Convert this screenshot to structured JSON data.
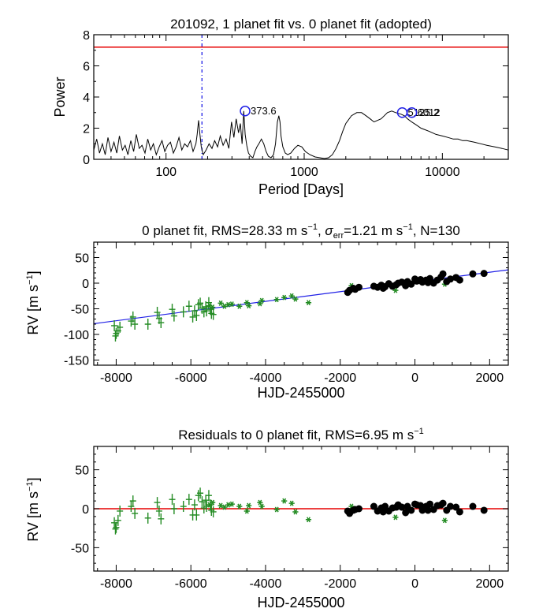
{
  "colors": {
    "rv_dot": "#000000",
    "rv_plus": "#228b22",
    "rv_star": "#228b22",
    "fit_line": "#1f1fe6",
    "zero_line": "#e60000",
    "threshold": "#e60000",
    "window": "#1f1fe6",
    "peak_circle": "#1f1fe6"
  },
  "chart_data": [
    {
      "type": "line",
      "title": "201092,  1 planet fit vs. 0 planet fit (adopted)",
      "xlabel": "Period [Days]",
      "ylabel": "Power",
      "xscale": "log",
      "xlim": [
        30,
        30000
      ],
      "ylim": [
        0,
        8
      ],
      "xtick_labels": [
        "100",
        "1000",
        "10000"
      ],
      "ytick_labels": [
        "0",
        "2",
        "4",
        "6",
        "8"
      ],
      "threshold_power": 7.2,
      "window_period": 182,
      "peaks": [
        {
          "period": 373.6,
          "power": 3.1,
          "label": "373.6"
        },
        {
          "period": 5125.2,
          "power": 3.0,
          "label": "5125.2"
        },
        {
          "period": 6012,
          "power": 3.0,
          "label": "6012"
        }
      ],
      "series": [
        {
          "periods": [
            30,
            31.5,
            33,
            34.6,
            36.3,
            38,
            40,
            42,
            44,
            46,
            48.3,
            50.6,
            53,
            55.6,
            58.3,
            61,
            64,
            67,
            70.4,
            73.8,
            77.4,
            81,
            85,
            89.2,
            93.5,
            98,
            102.7,
            107.7,
            113,
            118.4,
            124,
            130,
            136.4,
            143,
            150,
            157,
            164.6,
            168,
            172,
            176,
            180,
            186,
            195,
            205,
            215,
            225,
            236,
            247,
            259,
            272,
            285,
            298,
            310,
            322,
            335,
            345,
            355,
            365,
            374,
            384,
            395,
            410,
            425,
            440,
            455,
            470,
            490,
            510,
            530,
            550,
            575,
            600,
            620,
            640,
            655,
            668,
            680,
            700,
            730,
            760,
            800,
            850,
            900,
            960,
            1020,
            1100,
            1200,
            1300,
            1400,
            1500,
            1600,
            1700,
            1800,
            1900,
            2000,
            2200,
            2400,
            2600,
            2800,
            3000,
            3200,
            3400,
            3600,
            3800,
            4000,
            4300,
            4600,
            5000,
            5300,
            5600,
            6000,
            6500,
            7000,
            7500,
            8000,
            9000,
            10000,
            11000,
            12000,
            13000,
            14000,
            15000,
            17000,
            19000,
            21000,
            24000,
            27000,
            30000
          ],
          "power": [
            0.6,
            1.3,
            0.4,
            1.0,
            0.3,
            1.4,
            0.5,
            1.1,
            0.4,
            1.5,
            0.6,
            0.9,
            0.3,
            1.2,
            0.5,
            1.6,
            0.7,
            0.9,
            0.4,
            1.3,
            0.6,
            1.0,
            0.3,
            0.8,
            1.2,
            0.5,
            0.9,
            1.1,
            0.4,
            0.8,
            1.4,
            0.6,
            1.0,
            0.8,
            1.2,
            0.5,
            1.0,
            1.6,
            2.5,
            1.6,
            0.8,
            0.3,
            0.6,
            1.0,
            0.7,
            1.2,
            0.8,
            1.5,
            0.9,
            1.3,
            0.7,
            2.4,
            1.4,
            2.6,
            1.7,
            2.3,
            1.0,
            3.1,
            1.6,
            0.9,
            0.4,
            0.2,
            0.1,
            0.5,
            0.8,
            1.0,
            1.3,
            1.0,
            0.5,
            0.2,
            0.1,
            0.3,
            1.0,
            2.4,
            2.8,
            2.4,
            1.5,
            0.8,
            0.4,
            0.3,
            0.4,
            0.7,
            0.9,
            0.8,
            0.5,
            0.3,
            0.15,
            0.1,
            0.05,
            0.1,
            0.3,
            0.7,
            1.2,
            1.8,
            2.3,
            2.8,
            3.0,
            3.0,
            2.8,
            2.6,
            2.4,
            2.5,
            2.6,
            2.8,
            3.0,
            3.1,
            3.0,
            2.9,
            2.8,
            2.6,
            2.4,
            2.2,
            2.0,
            1.9,
            1.8,
            1.6,
            1.5,
            1.4,
            1.3,
            1.3,
            1.2,
            1.2,
            1.1,
            1.0,
            0.9,
            0.8,
            0.7,
            0.6
          ]
        }
      ]
    },
    {
      "type": "scatter",
      "title": "0 planet fit, RMS=28.33 m s⁻¹, σerr=1.21 m s⁻¹, N=130",
      "title_parts": {
        "prefix": "0 planet fit, RMS=28.33 m s",
        "sup1": "−1",
        "mid1": ", ",
        "sigma": "σ",
        "sigma_sub": "err",
        "mid2": "=1.21 m s",
        "sup2": "−1",
        "suffix": ", N=130"
      },
      "xlabel": "HJD-2455000",
      "ylabel": "RV [m s⁻¹]",
      "ylabel_parts": {
        "main": "RV [m s",
        "sup": "−1",
        "end": "]"
      },
      "xlim": [
        -8600,
        2500
      ],
      "ylim": [
        -160,
        80
      ],
      "xtick_labels": [
        "-8000",
        "-6000",
        "-4000",
        "-2000",
        "0",
        "2000"
      ],
      "ytick_labels": [
        "-150",
        "-100",
        "-50",
        "0",
        "50"
      ],
      "fit_line": {
        "x": [
          -8600,
          2500
        ],
        "y": [
          -79,
          26
        ]
      },
      "series": [
        {
          "name": "plus",
          "points": [
            [
              -8050,
              -83
            ],
            [
              -8000,
              -98
            ],
            [
              -7950,
              -93
            ],
            [
              -8020,
              -103
            ],
            [
              -7900,
              -86
            ],
            [
              -7600,
              -74
            ],
            [
              -7550,
              -66
            ],
            [
              -7500,
              -80
            ],
            [
              -7150,
              -80
            ],
            [
              -6900,
              -57
            ],
            [
              -6850,
              -69
            ],
            [
              -6800,
              -77
            ],
            [
              -6500,
              -51
            ],
            [
              -6450,
              -64
            ],
            [
              -6200,
              -56
            ],
            [
              -6050,
              -45
            ],
            [
              -5950,
              -66
            ],
            [
              -5900,
              -54
            ],
            [
              -5850,
              -63
            ],
            [
              -5800,
              -42
            ],
            [
              -5750,
              -39
            ],
            [
              -5700,
              -49
            ],
            [
              -5650,
              -56
            ],
            [
              -5600,
              -46
            ],
            [
              -5580,
              -54
            ],
            [
              -5520,
              -38
            ],
            [
              -5480,
              -51
            ],
            [
              -5450,
              -59
            ],
            [
              -5400,
              -61
            ]
          ]
        },
        {
          "name": "star",
          "points": [
            [
              -5500,
              -44
            ],
            [
              -5420,
              -47
            ],
            [
              -5200,
              -39
            ],
            [
              -5100,
              -45
            ],
            [
              -5000,
              -42
            ],
            [
              -4900,
              -41
            ],
            [
              -4700,
              -45
            ],
            [
              -4500,
              -38
            ],
            [
              -4450,
              -44
            ],
            [
              -4150,
              -40
            ],
            [
              -4100,
              -34
            ],
            [
              -3700,
              -32
            ],
            [
              -3500,
              -28
            ],
            [
              -3300,
              -25
            ],
            [
              -3200,
              -31
            ],
            [
              -2850,
              -38
            ],
            [
              -1700,
              -5
            ],
            [
              -900,
              -5
            ],
            [
              -520,
              -14
            ],
            [
              800,
              -2
            ]
          ]
        },
        {
          "name": "dot",
          "points": [
            [
              -1800,
              -18
            ],
            [
              -1750,
              -14
            ],
            [
              -1650,
              -10
            ],
            [
              -1600,
              -12
            ],
            [
              -1500,
              -8
            ],
            [
              -1100,
              -6
            ],
            [
              -1000,
              -8
            ],
            [
              -900,
              -4
            ],
            [
              -850,
              -10
            ],
            [
              -800,
              -7
            ],
            [
              -700,
              -1
            ],
            [
              -600,
              -6
            ],
            [
              -500,
              -3
            ],
            [
              -450,
              0
            ],
            [
              -350,
              2
            ],
            [
              -250,
              -5
            ],
            [
              -200,
              3
            ],
            [
              -100,
              -2
            ],
            [
              0,
              8
            ],
            [
              50,
              4
            ],
            [
              150,
              7
            ],
            [
              200,
              2
            ],
            [
              300,
              6
            ],
            [
              350,
              1
            ],
            [
              400,
              9
            ],
            [
              500,
              0
            ],
            [
              600,
              6
            ],
            [
              700,
              12
            ],
            [
              750,
              18
            ],
            [
              850,
              3
            ],
            [
              950,
              8
            ],
            [
              1100,
              11
            ],
            [
              1200,
              6
            ],
            [
              1550,
              18
            ],
            [
              1850,
              19
            ]
          ]
        }
      ]
    },
    {
      "type": "scatter",
      "title": "Residuals to 0 planet fit, RMS=6.95 m s⁻¹",
      "title_parts": {
        "prefix": "Residuals to 0 planet fit, RMS=6.95 m s",
        "sup": "−1"
      },
      "xlabel": "HJD-2455000",
      "ylabel": "RV [m s⁻¹]",
      "ylabel_parts": {
        "main": "RV [m s",
        "sup": "−1",
        "end": "]"
      },
      "xlim": [
        -8600,
        2500
      ],
      "ylim": [
        -80,
        80
      ],
      "xtick_labels": [
        "-8000",
        "-6000",
        "-4000",
        "-2000",
        "0",
        "2000"
      ],
      "ytick_labels": [
        "-50",
        "0",
        "50"
      ],
      "zero_line": 0,
      "series": [
        {
          "name": "plus",
          "points": [
            [
              -8050,
              -18
            ],
            [
              -8000,
              -24
            ],
            [
              -7950,
              -15
            ],
            [
              -8020,
              -26
            ],
            [
              -7900,
              -3
            ],
            [
              -7600,
              3
            ],
            [
              -7550,
              10
            ],
            [
              -7500,
              -6
            ],
            [
              -7150,
              -12
            ],
            [
              -6900,
              8
            ],
            [
              -6850,
              -3
            ],
            [
              -6800,
              -13
            ],
            [
              -6500,
              12
            ],
            [
              -6450,
              0
            ],
            [
              -6200,
              3
            ],
            [
              -6050,
              12
            ],
            [
              -5950,
              -8
            ],
            [
              -5900,
              5
            ],
            [
              -5850,
              -8
            ],
            [
              -5800,
              17
            ],
            [
              -5750,
              20
            ],
            [
              -5700,
              9
            ],
            [
              -5650,
              1
            ],
            [
              -5600,
              11
            ],
            [
              -5580,
              3
            ],
            [
              -5520,
              17
            ],
            [
              -5480,
              5
            ],
            [
              -5450,
              -2
            ],
            [
              -5400,
              -4
            ]
          ]
        },
        {
          "name": "star",
          "points": [
            [
              -5500,
              5
            ],
            [
              -5420,
              8
            ],
            [
              -5200,
              4
            ],
            [
              -5100,
              2
            ],
            [
              -5000,
              5
            ],
            [
              -4900,
              6
            ],
            [
              -4700,
              3
            ],
            [
              -4500,
              -3
            ],
            [
              -4450,
              4
            ],
            [
              -4150,
              8
            ],
            [
              -4100,
              3
            ],
            [
              -3700,
              -1
            ],
            [
              -3500,
              10
            ],
            [
              -3300,
              7
            ],
            [
              -3200,
              -4
            ],
            [
              -2850,
              -14
            ],
            [
              -1700,
              3
            ],
            [
              -900,
              1
            ],
            [
              -520,
              -11
            ],
            [
              800,
              -15
            ]
          ]
        },
        {
          "name": "dot",
          "points": [
            [
              -1800,
              -3
            ],
            [
              -1750,
              -6
            ],
            [
              -1650,
              -2
            ],
            [
              -1600,
              -1
            ],
            [
              -1500,
              0
            ],
            [
              -1100,
              3
            ],
            [
              -1000,
              -3
            ],
            [
              -900,
              1
            ],
            [
              -850,
              -4
            ],
            [
              -800,
              3
            ],
            [
              -700,
              -3
            ],
            [
              -600,
              1
            ],
            [
              -500,
              2
            ],
            [
              -450,
              5
            ],
            [
              -350,
              2
            ],
            [
              -250,
              -5
            ],
            [
              -200,
              3
            ],
            [
              -100,
              -2
            ],
            [
              0,
              6
            ],
            [
              50,
              5
            ],
            [
              150,
              4
            ],
            [
              200,
              -2
            ],
            [
              300,
              3
            ],
            [
              350,
              -2
            ],
            [
              400,
              6
            ],
            [
              500,
              -1
            ],
            [
              600,
              4
            ],
            [
              700,
              5
            ],
            [
              750,
              7
            ],
            [
              850,
              -2
            ],
            [
              950,
              3
            ],
            [
              1100,
              2
            ],
            [
              1200,
              -4
            ],
            [
              1550,
              3
            ],
            [
              1850,
              -2
            ]
          ]
        }
      ]
    }
  ]
}
